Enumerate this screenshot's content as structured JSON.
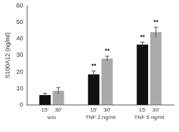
{
  "chart_data": {
    "type": "bar",
    "y_label": "S100A12 (ng/ml)",
    "categories": [
      "w/o",
      "TNF 2 ng/ml",
      "TNF 5 ng/ml"
    ],
    "series": [
      {
        "name": "15'",
        "color": "#111111",
        "values": [
          6,
          18.5,
          36.5
        ],
        "errors": [
          1,
          2,
          1.5
        ],
        "annotations": [
          null,
          "**",
          "**"
        ]
      },
      {
        "name": "30'",
        "color": "#aaaaaa",
        "values": [
          8.5,
          28,
          44
        ],
        "errors": [
          2,
          1.5,
          3
        ],
        "annotations": [
          null,
          "**",
          "**"
        ]
      }
    ],
    "ylim": [
      0,
      60
    ],
    "yticks": [
      0,
      10,
      20,
      30,
      40,
      50,
      60
    ],
    "grid": false
  }
}
